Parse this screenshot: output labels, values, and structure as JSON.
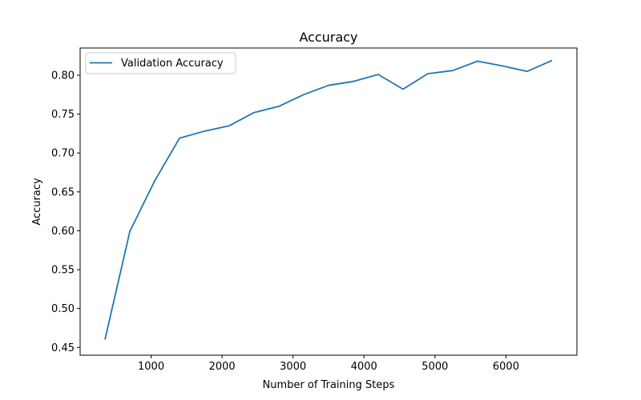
{
  "chart_data": {
    "type": "line",
    "title": "Accuracy",
    "xlabel": "Number of Training Steps",
    "ylabel": "Accuracy",
    "xlim": [
      0,
      7000
    ],
    "ylim": [
      0.44,
      0.835
    ],
    "xticks": [
      1000,
      2000,
      3000,
      4000,
      5000,
      6000
    ],
    "xtick_labels": [
      "1000",
      "2000",
      "3000",
      "4000",
      "5000",
      "6000"
    ],
    "yticks": [
      0.45,
      0.5,
      0.55,
      0.6,
      0.65,
      0.7,
      0.75,
      0.8
    ],
    "ytick_labels": [
      "0.45",
      "0.50",
      "0.55",
      "0.60",
      "0.65",
      "0.70",
      "0.75",
      "0.80"
    ],
    "grid": false,
    "legend_position": "top-left",
    "series": [
      {
        "name": "Validation Accuracy",
        "color": "#1f77b4",
        "x": [
          350,
          700,
          1050,
          1400,
          1750,
          2100,
          2450,
          2800,
          3150,
          3500,
          3850,
          4200,
          4550,
          4900,
          5250,
          5600,
          5950,
          6300,
          6650
        ],
        "y": [
          0.46,
          0.599,
          0.664,
          0.719,
          0.728,
          0.735,
          0.752,
          0.76,
          0.775,
          0.787,
          0.792,
          0.801,
          0.782,
          0.802,
          0.806,
          0.818,
          0.812,
          0.805,
          0.819
        ]
      }
    ]
  }
}
